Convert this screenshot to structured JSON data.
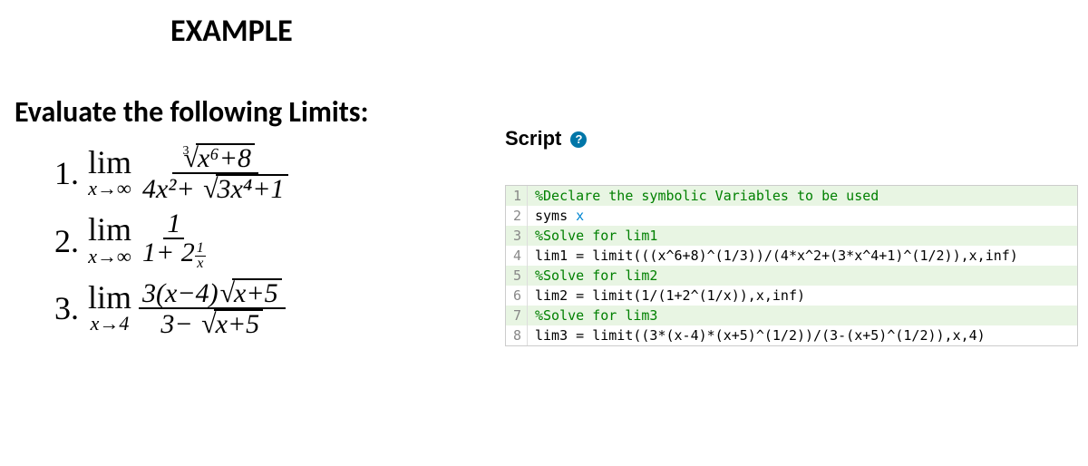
{
  "header": "EXAMPLE",
  "prompt": "Evaluate the following Limits:",
  "problems": {
    "p1": {
      "num": "1.",
      "lim": "lim",
      "approach": "x→∞",
      "numer_cbrt_index": "3",
      "numer_radicand": "x⁶+8",
      "denom_left": "4x²+ ",
      "denom_radicand": "3x⁴+1"
    },
    "p2": {
      "num": "2.",
      "lim": "lim",
      "approach": "x→∞",
      "numer": "1",
      "denom_left": "1+ 2",
      "exp_top": "1",
      "exp_bot": "x"
    },
    "p3": {
      "num": "3.",
      "lim": "lim",
      "approach": "x→4",
      "numer_left": "3(x−4)",
      "numer_radicand": "x+5",
      "denom_left": "3− ",
      "denom_radicand": "x+5"
    }
  },
  "script_panel": {
    "title": "Script",
    "help": "?"
  },
  "code": {
    "gutter_color": "#888888",
    "border_color": "#cccccc",
    "highlight_bg": "#e8f5e3",
    "font_family": "Consolas",
    "comment_color": "#008000",
    "sym_color": "#0086d1",
    "lines": [
      {
        "n": "1",
        "type": "comment",
        "text": "%Declare the symbolic Variables to be used"
      },
      {
        "n": "2",
        "type": "syms",
        "kw": "syms ",
        "var": "x"
      },
      {
        "n": "3",
        "type": "comment",
        "text": "%Solve for lim1"
      },
      {
        "n": "4",
        "type": "code",
        "text": "lim1 = limit(((x^6+8)^(1/3))/(4*x^2+(3*x^4+1)^(1/2)),x,inf)"
      },
      {
        "n": "5",
        "type": "comment",
        "text": "%Solve for lim2"
      },
      {
        "n": "6",
        "type": "code",
        "text": "lim2 = limit(1/(1+2^(1/x)),x,inf)"
      },
      {
        "n": "7",
        "type": "comment",
        "text": "%Solve for lim3"
      },
      {
        "n": "8",
        "type": "code",
        "text": "lim3 = limit((3*(x-4)*(x+5)^(1/2))/(3-(x+5)^(1/2)),x,4)"
      }
    ]
  },
  "colors": {
    "help_bg": "#0076a8",
    "help_fg": "#ffffff",
    "background": "#ffffff",
    "text": "#000000"
  }
}
